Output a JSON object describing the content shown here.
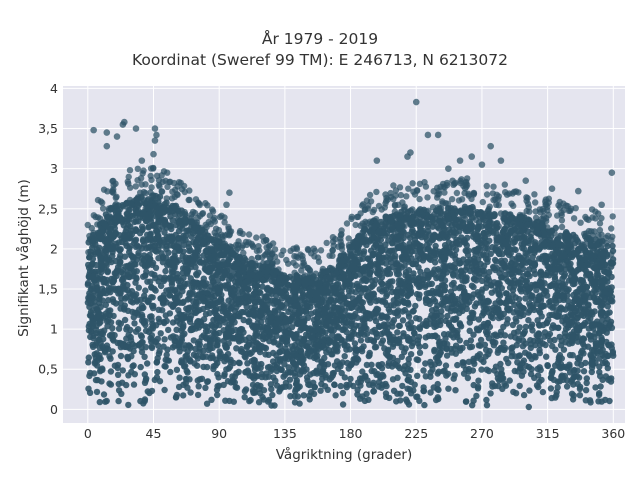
{
  "chart_data": {
    "type": "scatter",
    "title": "År 1979 - 2019",
    "subtitle": "Koordinat (Sweref 99 TM): E 246713, N 6213072",
    "xlabel": "Vågriktning (grader)",
    "ylabel": "Signifikant våghöjd (m)",
    "xlim": [
      -17,
      368
    ],
    "ylim": [
      -0.17,
      4.03
    ],
    "xticks": [
      0,
      45,
      90,
      135,
      180,
      225,
      270,
      315,
      360
    ],
    "xtick_labels": [
      "0",
      "45",
      "90",
      "135",
      "180",
      "225",
      "270",
      "315",
      "360"
    ],
    "yticks": [
      0,
      0.5,
      1,
      1.5,
      2,
      2.5,
      3,
      3.5,
      4
    ],
    "ytick_labels": [
      "0",
      "0,5",
      "1",
      "1,5",
      "2",
      "2,5",
      "3",
      "3,5",
      "4"
    ],
    "grid": true,
    "marker_color": "#2f5468",
    "envelope_dir": [
      0,
      15,
      30,
      45,
      60,
      75,
      90,
      105,
      120,
      135,
      150,
      165,
      180,
      195,
      210,
      225,
      240,
      255,
      270,
      285,
      300,
      315,
      330,
      345,
      360
    ],
    "envelope_height": [
      2.1,
      2.5,
      2.65,
      2.7,
      2.55,
      2.3,
      2.1,
      1.9,
      1.8,
      1.7,
      1.65,
      1.75,
      2.05,
      2.35,
      2.45,
      2.5,
      2.5,
      2.55,
      2.5,
      2.45,
      2.4,
      2.3,
      2.2,
      2.15,
      2.05
    ],
    "outliers": [
      {
        "x": 4,
        "y": 3.48
      },
      {
        "x": 13,
        "y": 3.45
      },
      {
        "x": 20,
        "y": 3.4
      },
      {
        "x": 24,
        "y": 3.55
      },
      {
        "x": 25,
        "y": 3.58
      },
      {
        "x": 33,
        "y": 3.5
      },
      {
        "x": 46,
        "y": 3.5
      },
      {
        "x": 47,
        "y": 3.42
      },
      {
        "x": 46,
        "y": 3.35
      },
      {
        "x": 13,
        "y": 3.28
      },
      {
        "x": 37,
        "y": 3.1
      },
      {
        "x": 45,
        "y": 3.18
      },
      {
        "x": 97,
        "y": 2.7
      },
      {
        "x": 95,
        "y": 2.55
      },
      {
        "x": 198,
        "y": 3.1
      },
      {
        "x": 219,
        "y": 3.15
      },
      {
        "x": 221,
        "y": 3.2
      },
      {
        "x": 225,
        "y": 3.83
      },
      {
        "x": 233,
        "y": 3.42
      },
      {
        "x": 240,
        "y": 3.42
      },
      {
        "x": 247,
        "y": 3.0
      },
      {
        "x": 255,
        "y": 3.1
      },
      {
        "x": 263,
        "y": 3.15
      },
      {
        "x": 270,
        "y": 3.05
      },
      {
        "x": 276,
        "y": 3.28
      },
      {
        "x": 283,
        "y": 3.1
      },
      {
        "x": 300,
        "y": 2.85
      },
      {
        "x": 318,
        "y": 2.75
      },
      {
        "x": 336,
        "y": 2.72
      },
      {
        "x": 359,
        "y": 2.95
      },
      {
        "x": 331,
        "y": 2.5
      },
      {
        "x": 352,
        "y": 2.55
      }
    ]
  }
}
